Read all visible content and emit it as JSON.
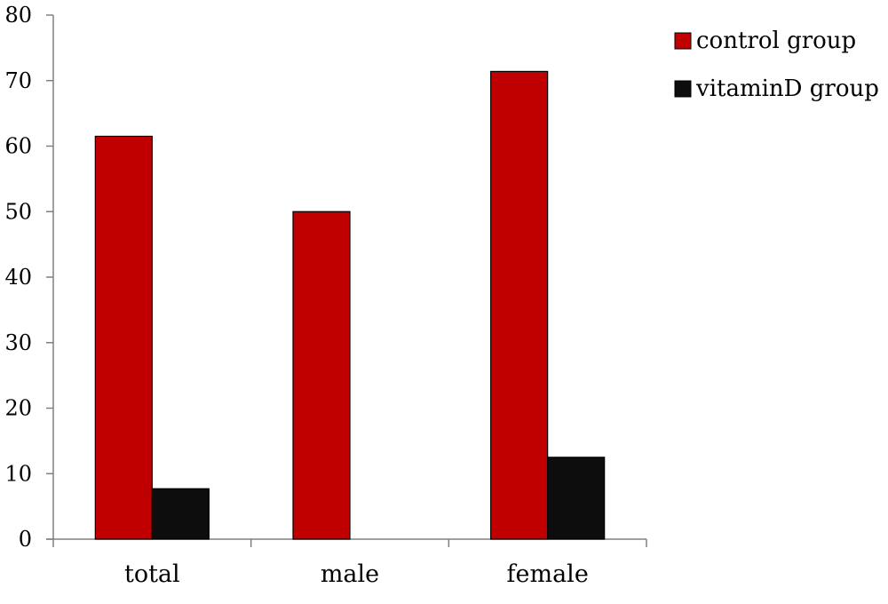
{
  "chart_data": {
    "type": "bar",
    "categories": [
      "total",
      "male",
      "female"
    ],
    "series": [
      {
        "name": "control group",
        "color": "#c00000",
        "values": [
          61.5,
          50,
          71.4
        ]
      },
      {
        "name": "vitaminD group",
        "color": "#0d0d0d",
        "values": [
          7.7,
          0,
          12.5
        ]
      }
    ],
    "ylim": [
      0,
      80
    ],
    "yticks": [
      0,
      10,
      20,
      30,
      40,
      50,
      60,
      70,
      80
    ],
    "title": "",
    "xlabel": "",
    "ylabel": "",
    "grid": false,
    "legend_position": "top-right"
  }
}
